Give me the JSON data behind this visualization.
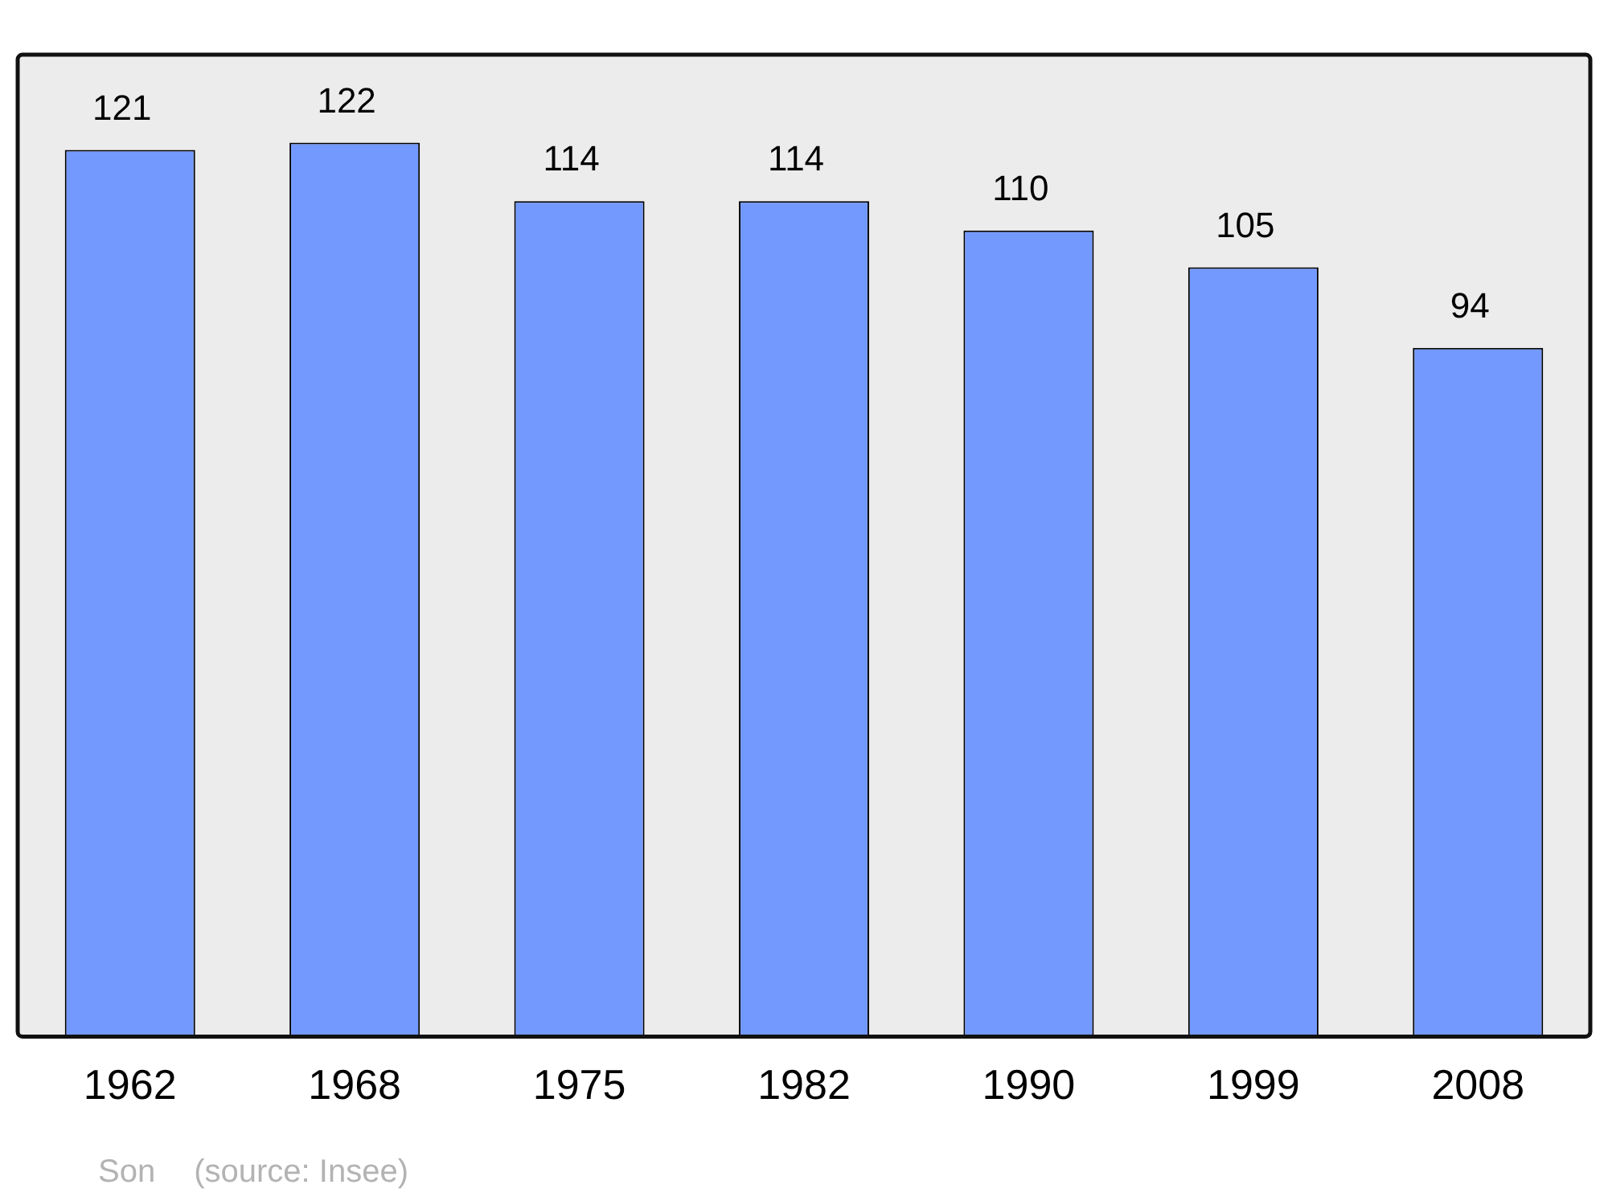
{
  "chart_data": {
    "type": "bar",
    "categories": [
      "1962",
      "1968",
      "1975",
      "1982",
      "1990",
      "1999",
      "2008"
    ],
    "values": [
      121,
      122,
      114,
      114,
      110,
      105,
      94
    ],
    "color": "#7399ff",
    "ylim": [
      0,
      134
    ],
    "data_labels": true,
    "grid": false,
    "legend": false,
    "annotations": [
      "Son",
      "(source: Insee)"
    ]
  }
}
